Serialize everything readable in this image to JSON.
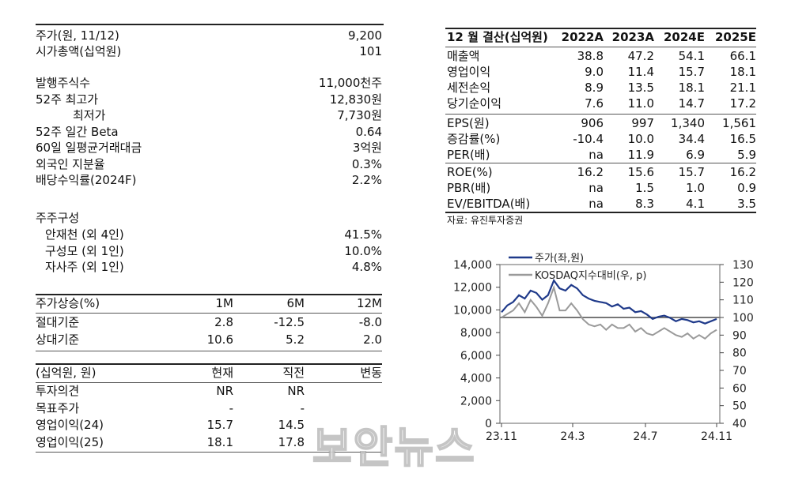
{
  "left": {
    "price": [
      {
        "label": "주가(원, 11/12)",
        "value": "9,200"
      },
      {
        "label": "시가총액(십억원)",
        "value": "101"
      }
    ],
    "shares": [
      {
        "label": "발행주식수",
        "value": "11,000천주"
      },
      {
        "label": "52주  최고가",
        "value": "12,830원"
      },
      {
        "label": "최저가",
        "value": "7,730원"
      },
      {
        "label": "52주 일간 Beta",
        "value": "0.64"
      },
      {
        "label": "60일 일평균거래대금",
        "value": "3억원"
      },
      {
        "label": "외국인 지분율",
        "value": "0.3%"
      },
      {
        "label": "배당수익률(2024F)",
        "value": "2.2%"
      }
    ],
    "holders_title": "주주구성",
    "holders": [
      {
        "label": "안재천 (외 4인)",
        "value": "41.5%"
      },
      {
        "label": "구성모 (외 1인)",
        "value": "10.0%"
      },
      {
        "label": "자사주 (외 1인)",
        "value": "4.8%"
      }
    ],
    "perf_header": [
      "주가상승(%)",
      "1M",
      "6M",
      "12M"
    ],
    "perf_rows": [
      [
        "절대기준",
        "2.8",
        "-12.5",
        "-8.0"
      ],
      [
        "상대기준",
        "10.6",
        "5.2",
        "2.0"
      ]
    ],
    "est_header": [
      "(십억원, 원)",
      "현재",
      "직전",
      "변동"
    ],
    "est_rows": [
      [
        "투자의견",
        "NR",
        "NR",
        ""
      ],
      [
        "목표주가",
        "-",
        "-",
        ""
      ],
      [
        "영업이익(24)",
        "15.7",
        "14.5",
        ""
      ],
      [
        "영업이익(25)",
        "18.1",
        "17.8",
        ""
      ]
    ]
  },
  "fin": {
    "header": [
      "12 월 결산(십억원)",
      "2022A",
      "2023A",
      "2024E",
      "2025E"
    ],
    "rows": [
      [
        "매출액",
        "38.8",
        "47.2",
        "54.1",
        "66.1"
      ],
      [
        "영업이익",
        "9.0",
        "11.4",
        "15.7",
        "18.1"
      ],
      [
        "세전손익",
        "8.9",
        "13.5",
        "18.1",
        "21.1"
      ],
      [
        "당기순이익",
        "7.6",
        "11.0",
        "14.7",
        "17.2"
      ],
      [
        "EPS(원)",
        "906",
        "997",
        "1,340",
        "1,561"
      ],
      [
        "증감률(%)",
        "-10.4",
        "10.0",
        "34.4",
        "16.5"
      ],
      [
        "PER(배)",
        "na",
        "11.9",
        "6.9",
        "5.9"
      ],
      [
        "ROE(%)",
        "16.2",
        "15.6",
        "15.7",
        "16.2"
      ],
      [
        "PBR(배)",
        "na",
        "1.5",
        "1.0",
        "0.9"
      ],
      [
        "EV/EBITDA(배)",
        "na",
        "8.3",
        "4.1",
        "3.5"
      ]
    ],
    "source": "자료: 유진투자증권"
  },
  "chart_data": {
    "type": "line",
    "x_ticks": [
      "23.11",
      "24.3",
      "24.7",
      "24.11"
    ],
    "left_axis": {
      "min": 0,
      "max": 14000,
      "ticks": [
        "0",
        "2,000",
        "4,000",
        "6,000",
        "8,000",
        "10,000",
        "12,000",
        "14,000"
      ]
    },
    "right_axis": {
      "min": 40,
      "max": 130,
      "ticks": [
        "40",
        "50",
        "60",
        "70",
        "80",
        "90",
        "100",
        "110",
        "120",
        "130"
      ]
    },
    "baseline": 100,
    "series": [
      {
        "name": "주가(좌,원)",
        "axis": "left",
        "color": "#1f3a8a",
        "values": [
          9800,
          10400,
          10700,
          11300,
          11000,
          11700,
          11500,
          10900,
          11300,
          12600,
          11900,
          11700,
          12200,
          11900,
          11300,
          11000,
          10800,
          10700,
          10600,
          10300,
          10500,
          10100,
          10200,
          9800,
          9900,
          9600,
          9200,
          9400,
          9500,
          9300,
          9000,
          9200,
          9100,
          8900,
          9000,
          8800,
          9000,
          9200
        ]
      },
      {
        "name": "KOSDAQ지수대비(우, p)",
        "axis": "right",
        "color": "#9a9a9a",
        "values": [
          100,
          102,
          104,
          108,
          103,
          110,
          106,
          101,
          108,
          117,
          104,
          104,
          108,
          104,
          99,
          96,
          95,
          96,
          93,
          96,
          94,
          94,
          96,
          92,
          94,
          91,
          90,
          92,
          94,
          92,
          90,
          89,
          91,
          88,
          90,
          88,
          91,
          93
        ]
      }
    ]
  },
  "watermark": "보안뉴스"
}
